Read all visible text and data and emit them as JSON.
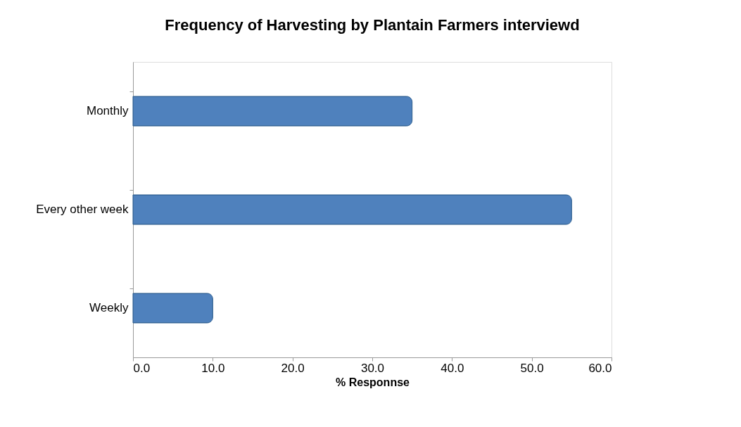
{
  "chart_data": {
    "type": "bar",
    "orientation": "horizontal",
    "title": "Frequency of Harvesting by Plantain Farmers interviewd",
    "xlabel": "% Responnse",
    "categories": [
      "Monthly",
      "Every other week",
      "Weekly"
    ],
    "values": [
      35.0,
      55.0,
      10.0
    ],
    "color": "#4f81bd",
    "xlim": [
      0,
      60
    ],
    "xticks": [
      {
        "value": 0,
        "label": "0.0"
      },
      {
        "value": 10,
        "label": "10.0"
      },
      {
        "value": 20,
        "label": "20.0"
      },
      {
        "value": 30,
        "label": "30.0"
      },
      {
        "value": 40,
        "label": "40.0"
      },
      {
        "value": 50,
        "label": "50.0"
      },
      {
        "value": 60,
        "label": "60.0"
      }
    ],
    "grid": false
  }
}
